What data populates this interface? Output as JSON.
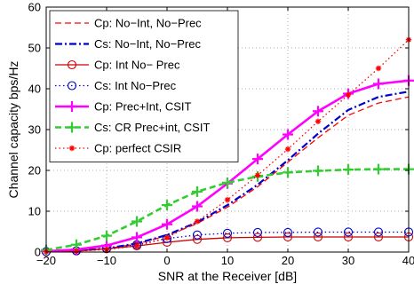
{
  "chart_data": {
    "type": "line",
    "title": "",
    "xlabel": "SNR at the Receiver [dB]",
    "ylabel": "Channel capacity bps/Hz",
    "xlim": [
      -20,
      40
    ],
    "ylim": [
      0,
      60
    ],
    "xticks": [
      -20,
      -10,
      0,
      10,
      20,
      30,
      40
    ],
    "yticks": [
      0,
      10,
      20,
      30,
      40,
      50,
      60
    ],
    "grid": true,
    "legend_position": "top-left",
    "x": [
      -20,
      -15,
      -10,
      -5,
      0,
      5,
      10,
      15,
      20,
      25,
      30,
      35,
      40
    ],
    "series": [
      {
        "name": "Cp: No−Int, No−Prec",
        "color": "#ff0000",
        "dash": "dashed",
        "marker": "none",
        "values": [
          0.1,
          0.3,
          0.8,
          2,
          4,
          7,
          11,
          16,
          22,
          28,
          33.5,
          36.5,
          38
        ]
      },
      {
        "name": "Cs: No−Int, No−Prec",
        "color": "#0000cc",
        "dash": "dashdot",
        "marker": "none",
        "values": [
          0.1,
          0.3,
          0.9,
          2.1,
          4.2,
          7.3,
          11.5,
          16.5,
          22.5,
          29,
          34.8,
          38,
          39.3
        ]
      },
      {
        "name": "Cp: Int No− Prec",
        "color": "#cc0000",
        "dash": "solid",
        "marker": "circle-open",
        "marker_x": [
          -20,
          -15,
          -10,
          -5,
          0,
          5,
          10,
          15,
          20,
          25,
          30,
          35,
          40
        ],
        "values": [
          0.1,
          0.3,
          0.8,
          1.5,
          2.4,
          3.1,
          3.5,
          3.6,
          3.7,
          3.7,
          3.7,
          3.7,
          3.7
        ]
      },
      {
        "name": "Cs: Int No−Prec",
        "color": "#0000cc",
        "dash": "dotted",
        "marker": "circle-open",
        "marker_x": [
          -20,
          -15,
          -10,
          -5,
          0,
          5,
          10,
          15,
          20,
          25,
          30,
          35,
          40
        ],
        "values": [
          0.1,
          0.3,
          0.9,
          1.8,
          3.3,
          4.2,
          4.6,
          4.8,
          4.8,
          4.9,
          4.9,
          4.9,
          4.9
        ]
      },
      {
        "name": "Cp: Prec+Int, CSIT",
        "color": "#ff00ff",
        "dash": "solid",
        "marker": "plus",
        "marker_x": [
          -20,
          -15,
          -10,
          -5,
          0,
          5,
          10,
          15,
          20,
          25,
          30,
          35,
          40
        ],
        "values": [
          0.2,
          0.6,
          1.6,
          3.6,
          6.8,
          11.2,
          16.8,
          22.8,
          28.8,
          34.5,
          38.8,
          41.2,
          42
        ]
      },
      {
        "name": "Cs: CR Prec+int, CSIT",
        "color": "#33cc33",
        "dash": "dashed",
        "marker": "plus",
        "marker_x": [
          -20,
          -15,
          -10,
          -5,
          0,
          5,
          10,
          15,
          20,
          25,
          30,
          35,
          40
        ],
        "values": [
          0.5,
          1.8,
          4,
          7.5,
          11.5,
          14.8,
          17,
          18.5,
          19.5,
          19.9,
          20.2,
          20.3,
          20.3
        ]
      },
      {
        "name": "Cp: perfect CSIR",
        "color": "#ff0000",
        "dash": "dotted",
        "marker": "star",
        "marker_x": [
          -20,
          -15,
          -10,
          -5,
          0,
          5,
          10,
          15,
          20,
          25,
          30,
          35,
          40
        ],
        "values": [
          0.1,
          0.2,
          0.6,
          1.5,
          3.5,
          7.5,
          12.8,
          18.8,
          25.2,
          32,
          38.5,
          45,
          52
        ]
      }
    ]
  }
}
